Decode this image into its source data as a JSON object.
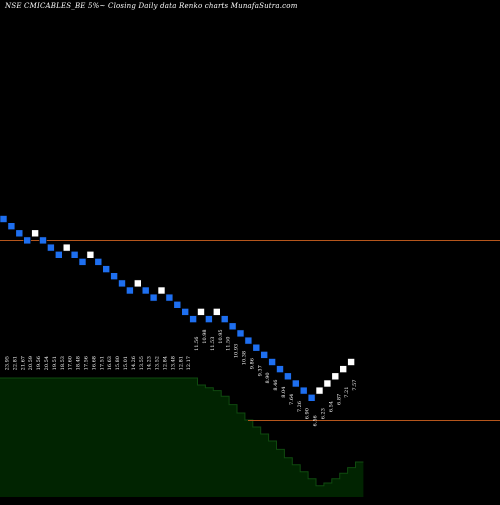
{
  "title": "NSE CMICABLES_BE 5%~  Closing Daily data  Renko  charts MunafaSutra.com",
  "colors": {
    "background": "#000000",
    "down_brick": "#1e6ff0",
    "up_brick": "#ffffff",
    "reference_line": "#b5561c",
    "volume_fill": "#012401",
    "volume_line": "#0f4a0f",
    "label": "#ffffff"
  },
  "chart_data": {
    "type": "renko",
    "title": "NSE CMICABLES_BE 5%~  Closing Daily data  Renko  charts MunafaSutra.com",
    "brick_percent": 5,
    "directions": [
      "down",
      "down",
      "down",
      "down",
      "up",
      "down",
      "down",
      "down",
      "up",
      "down",
      "down",
      "up",
      "down",
      "down",
      "down",
      "down",
      "down",
      "up",
      "down",
      "down",
      "up",
      "down",
      "down",
      "down",
      "down",
      "up",
      "down",
      "up",
      "down",
      "down",
      "down",
      "down",
      "down",
      "down",
      "down",
      "down",
      "down",
      "down",
      "down",
      "down",
      "up",
      "up",
      "up",
      "up",
      "up"
    ],
    "bricks": [
      {
        "value": 22.81,
        "direction": "down"
      },
      {
        "value": 21.67,
        "direction": "down"
      },
      {
        "value": 20.59,
        "direction": "down"
      },
      {
        "value": 19.56,
        "direction": "down"
      },
      {
        "value": 20.54,
        "direction": "up"
      },
      {
        "value": 19.51,
        "direction": "down"
      },
      {
        "value": 18.53,
        "direction": "down"
      },
      {
        "value": 17.6,
        "direction": "down"
      },
      {
        "value": 18.48,
        "direction": "up"
      },
      {
        "value": 17.56,
        "direction": "down"
      },
      {
        "value": 16.68,
        "direction": "down"
      },
      {
        "value": 17.51,
        "direction": "up"
      },
      {
        "value": 16.63,
        "direction": "down"
      },
      {
        "value": 15.8,
        "direction": "down"
      },
      {
        "value": 15.01,
        "direction": "down"
      },
      {
        "value": 14.26,
        "direction": "down"
      },
      {
        "value": 13.55,
        "direction": "down"
      },
      {
        "value": 14.23,
        "direction": "up"
      },
      {
        "value": 13.52,
        "direction": "down"
      },
      {
        "value": 12.84,
        "direction": "down"
      },
      {
        "value": 13.48,
        "direction": "up"
      },
      {
        "value": 12.81,
        "direction": "down"
      },
      {
        "value": 12.17,
        "direction": "down"
      },
      {
        "value": 11.56,
        "direction": "down"
      },
      {
        "value": 10.98,
        "direction": "down"
      },
      {
        "value": 11.53,
        "direction": "up"
      },
      {
        "value": 10.95,
        "direction": "down"
      },
      {
        "value": 11.5,
        "direction": "up"
      },
      {
        "value": 10.93,
        "direction": "down"
      },
      {
        "value": 10.38,
        "direction": "down"
      },
      {
        "value": 9.86,
        "direction": "down"
      },
      {
        "value": 9.37,
        "direction": "down"
      },
      {
        "value": 8.9,
        "direction": "down"
      },
      {
        "value": 8.46,
        "direction": "down"
      },
      {
        "value": 8.04,
        "direction": "down"
      },
      {
        "value": 7.64,
        "direction": "down"
      },
      {
        "value": 7.26,
        "direction": "down"
      },
      {
        "value": 6.9,
        "direction": "down"
      },
      {
        "value": 6.56,
        "direction": "down"
      },
      {
        "value": 6.23,
        "direction": "down"
      },
      {
        "value": 6.54,
        "direction": "up"
      },
      {
        "value": 6.87,
        "direction": "up"
      },
      {
        "value": 7.21,
        "direction": "up"
      },
      {
        "value": 7.57,
        "direction": "up"
      },
      {
        "value": 7.95,
        "direction": "up"
      }
    ],
    "price_labels": [
      "23.95",
      "22.81",
      "21.67",
      "20.59",
      "19.56",
      "20.54",
      "19.51",
      "18.53",
      "17.60",
      "18.48",
      "17.56",
      "16.68",
      "17.51",
      "16.63",
      "15.80",
      "15.01",
      "14.26",
      "13.55",
      "14.23",
      "13.52",
      "12.84",
      "13.48",
      "12.81",
      "12.17",
      "11.56",
      "10.98",
      "11.53",
      "10.95",
      "11.50",
      "10.93",
      "10.38",
      "9.86",
      "9.37",
      "8.90",
      "8.46",
      "8.04",
      "7.64",
      "7.26",
      "6.90",
      "6.56",
      "6.23",
      "6.54",
      "6.87",
      "7.21",
      "7.57"
    ],
    "reference_lines": [
      {
        "value": 15.4
      },
      {
        "value": 9.05
      }
    ],
    "volume": [
      0.85,
      0.85,
      0.85,
      0.85,
      0.85,
      0.85,
      0.85,
      0.85,
      0.85,
      0.85,
      0.85,
      0.85,
      0.85,
      0.85,
      0.85,
      0.85,
      0.85,
      0.85,
      0.85,
      0.85,
      0.85,
      0.85,
      0.85,
      0.85,
      0.85,
      0.8,
      0.78,
      0.76,
      0.72,
      0.66,
      0.6,
      0.55,
      0.5,
      0.45,
      0.4,
      0.34,
      0.28,
      0.23,
      0.18,
      0.13,
      0.08,
      0.1,
      0.13,
      0.17,
      0.21,
      0.25
    ],
    "ylim": [
      5.4,
      34
    ]
  }
}
